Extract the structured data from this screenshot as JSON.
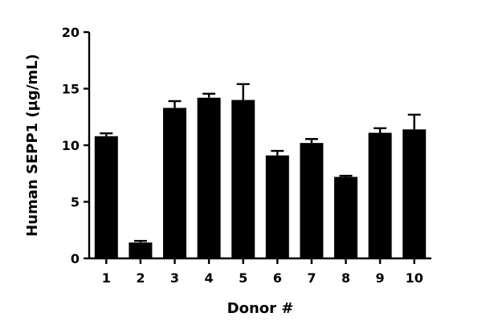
{
  "chart_data": {
    "type": "bar",
    "title": "",
    "xlabel": "Donor #",
    "ylabel": "Human SEPP1 (µg/mL)",
    "categories": [
      "1",
      "2",
      "3",
      "4",
      "5",
      "6",
      "7",
      "8",
      "9",
      "10"
    ],
    "values": [
      10.8,
      1.4,
      13.3,
      14.2,
      14.0,
      9.1,
      10.2,
      7.2,
      11.1,
      11.4
    ],
    "error_upper": [
      0.25,
      0.15,
      0.6,
      0.35,
      1.4,
      0.4,
      0.35,
      0.1,
      0.4,
      1.3
    ],
    "ylim": [
      0,
      20
    ],
    "yticks": [
      "0",
      "5",
      "10",
      "15",
      "20"
    ],
    "ytick_values": [
      0,
      5,
      10,
      15,
      20
    ],
    "grid": false,
    "legend": "none",
    "colors": {
      "bar": "#000000",
      "axis": "#000000",
      "background": "#ffffff"
    }
  }
}
